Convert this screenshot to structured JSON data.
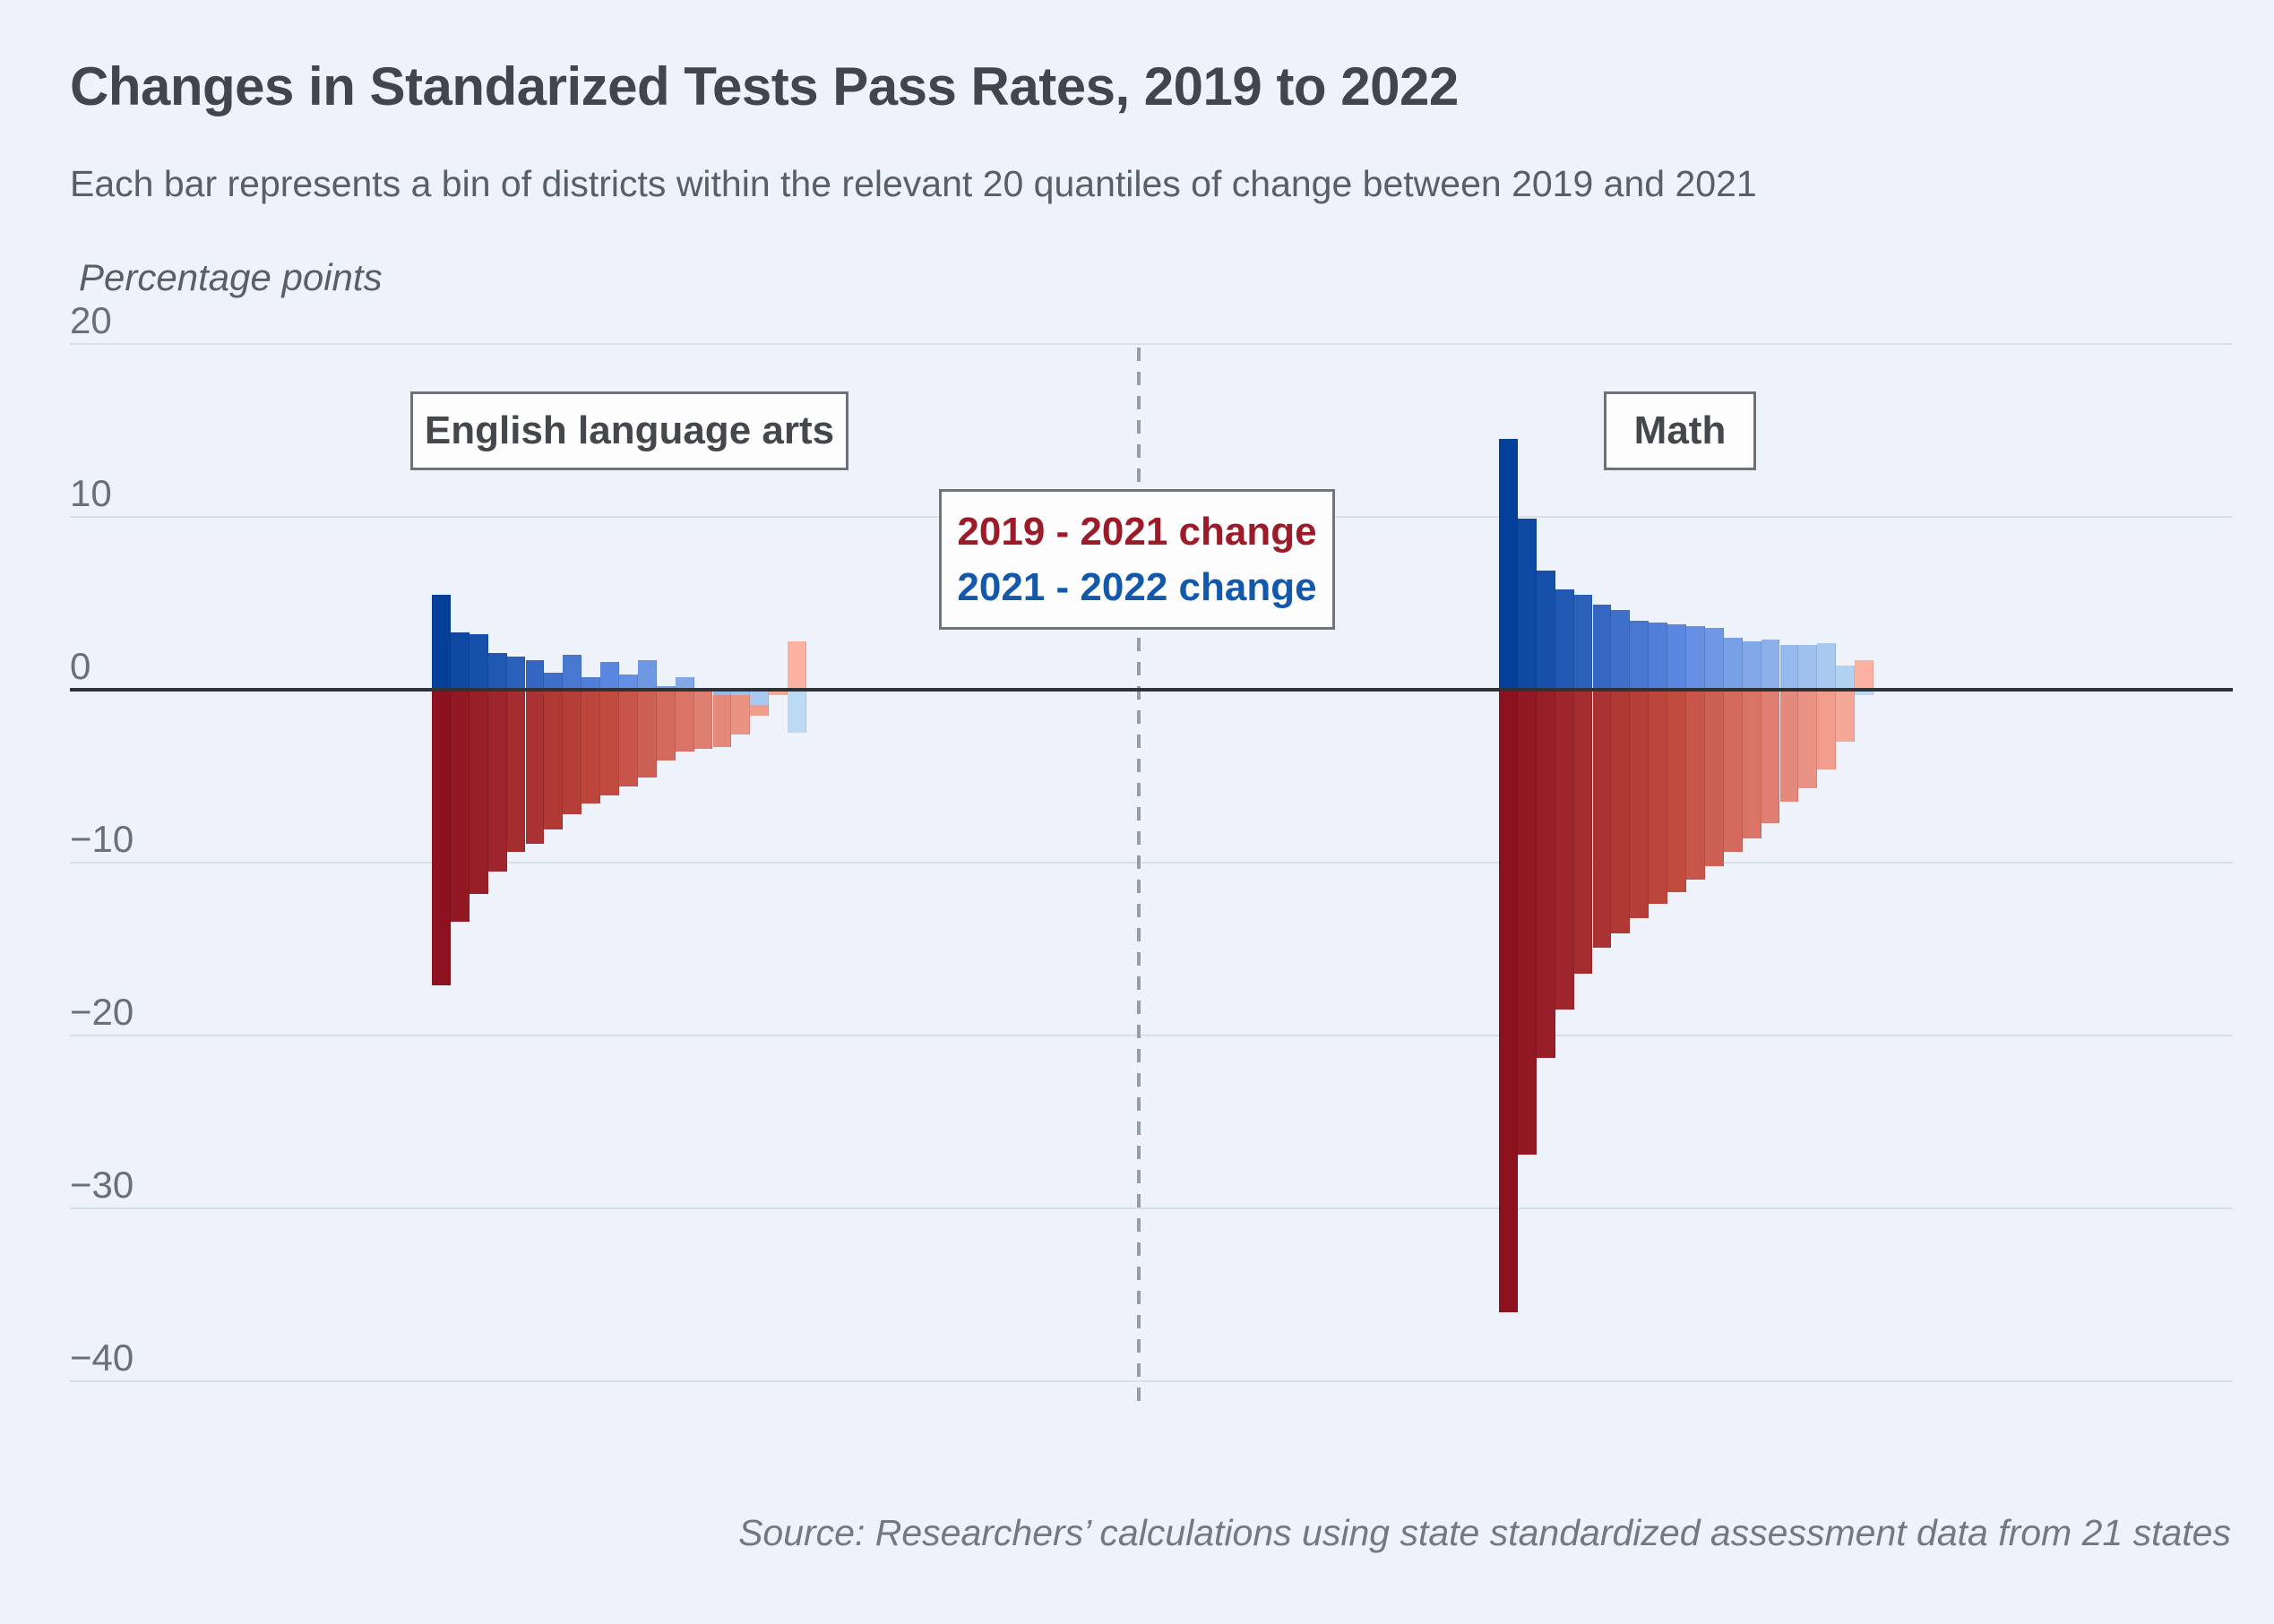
{
  "header": {
    "title": "Changes in Standarized Tests Pass Rates, 2019 to 2022",
    "subtitle": "Each bar represents a bin of districts within the relevant 20 quantiles of change between 2019 and 2021"
  },
  "axis": {
    "unit_label": "Percentage points"
  },
  "legend": {
    "line1": "2019 - 2021 change",
    "line2": "2021 - 2022 change",
    "line1_color": "#9c1b28",
    "line2_color": "#1258ab"
  },
  "source": "Source: Researchers’ calculations using state standardized assessment data from 21 states",
  "colors": {
    "background": "#edf2fb",
    "gridline": "#d8deea",
    "zero_line": "#2f3338",
    "divider_dash": "#979da6",
    "red_dark": "#8c1220",
    "red_mid": "#c24b40",
    "red_light": "#fbb2a2",
    "blue_dark": "#04409a",
    "blue_mid": "#5b87e0",
    "blue_light": "#bcdaf4"
  },
  "chart_data": {
    "type": "bar",
    "title": "Changes in Standarized Tests Pass Rates, 2019 to 2022",
    "ylabel": "Percentage points",
    "ylim": [
      -43,
      21
    ],
    "yticks": [
      20,
      10,
      0,
      -10,
      -20,
      -30,
      -40
    ],
    "grid": true,
    "legend_position": "center-top",
    "quantiles": 20,
    "groups": [
      {
        "label": "English language arts",
        "series": [
          {
            "name": "2019 - 2021 change",
            "values": [
              -17.1,
              -13.4,
              -11.8,
              -10.5,
              -9.4,
              -8.9,
              -8.1,
              -7.2,
              -6.6,
              -6.1,
              -5.6,
              -5.1,
              -4.1,
              -3.6,
              -3.4,
              -3.3,
              -2.6,
              -1.5,
              -0.3,
              2.8
            ]
          },
          {
            "name": "2021 - 2022 change",
            "values": [
              5.5,
              3.3,
              3.2,
              2.1,
              1.9,
              1.7,
              1.0,
              2.0,
              0.7,
              1.6,
              0.9,
              1.7,
              0.2,
              0.7,
              0.0,
              -0.3,
              -0.3,
              -0.9,
              -0.1,
              -2.5
            ]
          }
        ]
      },
      {
        "label": "Math",
        "series": [
          {
            "name": "2019 - 2021 change",
            "values": [
              -36.0,
              -26.9,
              -21.3,
              -18.5,
              -16.4,
              -14.9,
              -14.1,
              -13.2,
              -12.4,
              -11.7,
              -11.0,
              -10.2,
              -9.4,
              -8.6,
              -7.7,
              -6.5,
              -5.7,
              -4.6,
              -3.0,
              1.7
            ]
          },
          {
            "name": "2021 - 2022 change",
            "values": [
              14.5,
              9.9,
              6.9,
              5.8,
              5.5,
              4.9,
              4.6,
              4.0,
              3.9,
              3.8,
              3.7,
              3.6,
              3.0,
              2.8,
              2.9,
              2.6,
              2.6,
              2.7,
              1.4,
              -0.3
            ]
          }
        ]
      }
    ]
  }
}
